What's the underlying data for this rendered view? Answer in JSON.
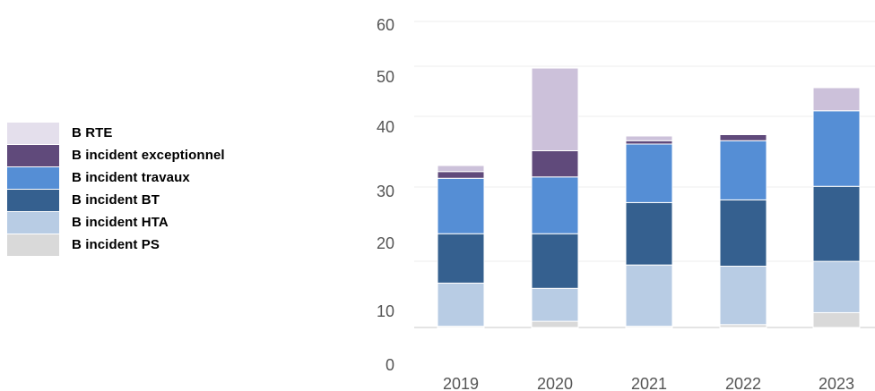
{
  "chart_data": {
    "type": "bar",
    "stacked": true,
    "categories": [
      "2019",
      "2020",
      "2021",
      "2022",
      "2023"
    ],
    "y_ticks": [
      "60",
      "50",
      "40",
      "30",
      "20",
      "10",
      "0"
    ],
    "ylim": [
      0,
      60
    ],
    "grid": true,
    "legend_position": "left",
    "series": [
      {
        "name": "B incident PS",
        "color": "#d9d9d9",
        "values": [
          0.3,
          1.5,
          0.3,
          0.7,
          3.6
        ]
      },
      {
        "name": "B incident HTA",
        "color": "#b8cce4",
        "values": [
          10.5,
          8.0,
          15.0,
          14.3,
          12.6
        ]
      },
      {
        "name": "B incident BT",
        "color": "#35608f",
        "values": [
          11.5,
          12.8,
          12.8,
          13.6,
          14.7
        ]
      },
      {
        "name": "B incident travaux",
        "color": "#558ed5",
        "values": [
          9.8,
          10.0,
          9.1,
          9.1,
          11.8
        ]
      },
      {
        "name": "B incident exceptionnel",
        "color": "#604a7b",
        "values": [
          1.0,
          3.9,
          0.5,
          0.9,
          0.0
        ]
      },
      {
        "name": "B RTE",
        "color": "#ccc1da",
        "values": [
          0.9,
          14.5,
          0.7,
          0.0,
          4.3
        ]
      }
    ]
  },
  "legend_order": [
    {
      "label": "B RTE",
      "color": "#e4dfec"
    },
    {
      "label": "B incident exceptionnel",
      "color": "#604a7b"
    },
    {
      "label": "B incident travaux",
      "color": "#558ed5"
    },
    {
      "label": "B incident BT",
      "color": "#35608f"
    },
    {
      "label": "B incident HTA",
      "color": "#b8cce4"
    },
    {
      "label": "B incident PS",
      "color": "#d9d9d9"
    }
  ]
}
